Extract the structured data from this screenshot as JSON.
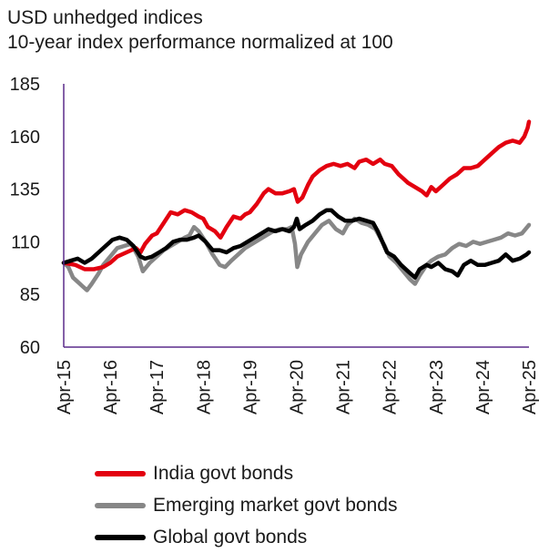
{
  "title": "USD unhedged indices",
  "subtitle": "10-year index performance normalized at 100",
  "chart_data": {
    "type": "line",
    "title": "USD unhedged indices",
    "subtitle": "10-year index performance normalized at 100",
    "ylim": [
      60,
      185
    ],
    "y_ticks": [
      60,
      85,
      110,
      135,
      160,
      185
    ],
    "x_range": [
      2015.25,
      2025.25
    ],
    "x_ticks": [
      {
        "label": "Apr-15",
        "t": 2015.25
      },
      {
        "label": "Apr-16",
        "t": 2016.25
      },
      {
        "label": "Apr-17",
        "t": 2017.25
      },
      {
        "label": "Apr-18",
        "t": 2018.25
      },
      {
        "label": "Apr-19",
        "t": 2019.25
      },
      {
        "label": "Apr-20",
        "t": 2020.25
      },
      {
        "label": "Apr-21",
        "t": 2021.25
      },
      {
        "label": "Apr-22",
        "t": 2022.25
      },
      {
        "label": "Apr-23",
        "t": 2023.25
      },
      {
        "label": "Apr-24",
        "t": 2024.25
      },
      {
        "label": "Apr-25",
        "t": 2025.25
      }
    ],
    "grid": false,
    "legend_position": "bottom",
    "series": [
      {
        "name": "India govt bonds",
        "color": "#e3000f",
        "points": [
          [
            2015.25,
            100
          ],
          [
            2015.5,
            99
          ],
          [
            2015.7,
            97
          ],
          [
            2015.9,
            97
          ],
          [
            2016.1,
            98
          ],
          [
            2016.25,
            100
          ],
          [
            2016.4,
            103
          ],
          [
            2016.6,
            105
          ],
          [
            2016.8,
            107
          ],
          [
            2016.9,
            105
          ],
          [
            2017.0,
            109
          ],
          [
            2017.15,
            113
          ],
          [
            2017.25,
            114
          ],
          [
            2017.4,
            119
          ],
          [
            2017.55,
            124
          ],
          [
            2017.7,
            123
          ],
          [
            2017.85,
            125
          ],
          [
            2018.0,
            124
          ],
          [
            2018.15,
            122
          ],
          [
            2018.25,
            121
          ],
          [
            2018.35,
            117
          ],
          [
            2018.5,
            115
          ],
          [
            2018.62,
            112
          ],
          [
            2018.75,
            117
          ],
          [
            2018.9,
            122
          ],
          [
            2019.05,
            121
          ],
          [
            2019.15,
            123
          ],
          [
            2019.25,
            124
          ],
          [
            2019.4,
            128
          ],
          [
            2019.55,
            133
          ],
          [
            2019.65,
            135
          ],
          [
            2019.8,
            133
          ],
          [
            2019.95,
            133
          ],
          [
            2020.1,
            134
          ],
          [
            2020.2,
            135
          ],
          [
            2020.28,
            129
          ],
          [
            2020.38,
            131
          ],
          [
            2020.5,
            137
          ],
          [
            2020.6,
            141
          ],
          [
            2020.75,
            144
          ],
          [
            2020.9,
            146
          ],
          [
            2021.05,
            147
          ],
          [
            2021.2,
            146
          ],
          [
            2021.35,
            147
          ],
          [
            2021.5,
            145
          ],
          [
            2021.6,
            148
          ],
          [
            2021.75,
            149
          ],
          [
            2021.9,
            147
          ],
          [
            2022.05,
            149
          ],
          [
            2022.15,
            147
          ],
          [
            2022.3,
            146
          ],
          [
            2022.45,
            142
          ],
          [
            2022.55,
            140
          ],
          [
            2022.65,
            138
          ],
          [
            2022.8,
            136
          ],
          [
            2022.95,
            134
          ],
          [
            2023.05,
            132
          ],
          [
            2023.15,
            136
          ],
          [
            2023.25,
            134
          ],
          [
            2023.4,
            137
          ],
          [
            2023.55,
            140
          ],
          [
            2023.7,
            142
          ],
          [
            2023.85,
            145
          ],
          [
            2024.0,
            145
          ],
          [
            2024.15,
            146
          ],
          [
            2024.3,
            149
          ],
          [
            2024.45,
            152
          ],
          [
            2024.6,
            155
          ],
          [
            2024.75,
            157
          ],
          [
            2024.9,
            158
          ],
          [
            2025.05,
            157
          ],
          [
            2025.15,
            160
          ],
          [
            2025.22,
            164
          ],
          [
            2025.25,
            167
          ]
        ]
      },
      {
        "name": "Emerging market govt bonds",
        "color": "#878787",
        "points": [
          [
            2015.25,
            100
          ],
          [
            2015.35,
            98
          ],
          [
            2015.45,
            93
          ],
          [
            2015.55,
            91
          ],
          [
            2015.65,
            89
          ],
          [
            2015.75,
            87
          ],
          [
            2015.85,
            90
          ],
          [
            2016.0,
            95
          ],
          [
            2016.1,
            99
          ],
          [
            2016.25,
            103
          ],
          [
            2016.4,
            107
          ],
          [
            2016.55,
            108
          ],
          [
            2016.7,
            109
          ],
          [
            2016.85,
            103
          ],
          [
            2016.95,
            96
          ],
          [
            2017.1,
            100
          ],
          [
            2017.25,
            103
          ],
          [
            2017.4,
            106
          ],
          [
            2017.55,
            108
          ],
          [
            2017.7,
            110
          ],
          [
            2017.85,
            112
          ],
          [
            2017.95,
            113
          ],
          [
            2018.05,
            117
          ],
          [
            2018.15,
            115
          ],
          [
            2018.3,
            110
          ],
          [
            2018.45,
            104
          ],
          [
            2018.6,
            99
          ],
          [
            2018.72,
            98
          ],
          [
            2018.85,
            101
          ],
          [
            2019.0,
            104
          ],
          [
            2019.15,
            107
          ],
          [
            2019.3,
            109
          ],
          [
            2019.45,
            111
          ],
          [
            2019.6,
            113
          ],
          [
            2019.75,
            115
          ],
          [
            2019.9,
            116
          ],
          [
            2020.05,
            116
          ],
          [
            2020.15,
            117
          ],
          [
            2020.22,
            109
          ],
          [
            2020.27,
            98
          ],
          [
            2020.35,
            104
          ],
          [
            2020.5,
            110
          ],
          [
            2020.65,
            114
          ],
          [
            2020.8,
            118
          ],
          [
            2020.95,
            120
          ],
          [
            2021.1,
            116
          ],
          [
            2021.25,
            114
          ],
          [
            2021.35,
            118
          ],
          [
            2021.5,
            121
          ],
          [
            2021.65,
            119
          ],
          [
            2021.8,
            118
          ],
          [
            2021.95,
            116
          ],
          [
            2022.05,
            112
          ],
          [
            2022.15,
            108
          ],
          [
            2022.25,
            103
          ],
          [
            2022.4,
            100
          ],
          [
            2022.55,
            96
          ],
          [
            2022.7,
            92
          ],
          [
            2022.8,
            90
          ],
          [
            2022.9,
            94
          ],
          [
            2023.05,
            99
          ],
          [
            2023.15,
            101
          ],
          [
            2023.3,
            103
          ],
          [
            2023.45,
            104
          ],
          [
            2023.6,
            107
          ],
          [
            2023.75,
            109
          ],
          [
            2023.9,
            108
          ],
          [
            2024.05,
            110
          ],
          [
            2024.2,
            109
          ],
          [
            2024.35,
            110
          ],
          [
            2024.5,
            111
          ],
          [
            2024.65,
            112
          ],
          [
            2024.8,
            114
          ],
          [
            2024.95,
            113
          ],
          [
            2025.1,
            114
          ],
          [
            2025.25,
            118
          ]
        ]
      },
      {
        "name": "Global govt bonds",
        "color": "#000000",
        "points": [
          [
            2015.25,
            100
          ],
          [
            2015.4,
            101
          ],
          [
            2015.55,
            102
          ],
          [
            2015.7,
            100
          ],
          [
            2015.85,
            102
          ],
          [
            2016.0,
            105
          ],
          [
            2016.15,
            108
          ],
          [
            2016.3,
            111
          ],
          [
            2016.45,
            112
          ],
          [
            2016.6,
            111
          ],
          [
            2016.75,
            108
          ],
          [
            2016.9,
            103
          ],
          [
            2017.0,
            102
          ],
          [
            2017.15,
            103
          ],
          [
            2017.3,
            105
          ],
          [
            2017.45,
            107
          ],
          [
            2017.6,
            110
          ],
          [
            2017.75,
            111
          ],
          [
            2017.9,
            111
          ],
          [
            2018.05,
            112
          ],
          [
            2018.15,
            113
          ],
          [
            2018.3,
            110
          ],
          [
            2018.45,
            106
          ],
          [
            2018.6,
            106
          ],
          [
            2018.75,
            105
          ],
          [
            2018.9,
            107
          ],
          [
            2019.05,
            108
          ],
          [
            2019.2,
            110
          ],
          [
            2019.35,
            112
          ],
          [
            2019.5,
            114
          ],
          [
            2019.65,
            116
          ],
          [
            2019.8,
            115
          ],
          [
            2019.95,
            116
          ],
          [
            2020.1,
            115
          ],
          [
            2020.2,
            117
          ],
          [
            2020.26,
            121
          ],
          [
            2020.32,
            116
          ],
          [
            2020.45,
            118
          ],
          [
            2020.6,
            120
          ],
          [
            2020.75,
            123
          ],
          [
            2020.9,
            125
          ],
          [
            2021.0,
            125
          ],
          [
            2021.15,
            122
          ],
          [
            2021.3,
            120
          ],
          [
            2021.45,
            120
          ],
          [
            2021.6,
            121
          ],
          [
            2021.75,
            120
          ],
          [
            2021.9,
            119
          ],
          [
            2022.0,
            115
          ],
          [
            2022.1,
            110
          ],
          [
            2022.2,
            105
          ],
          [
            2022.35,
            103
          ],
          [
            2022.5,
            99
          ],
          [
            2022.65,
            96
          ],
          [
            2022.8,
            93
          ],
          [
            2022.9,
            97
          ],
          [
            2023.05,
            99
          ],
          [
            2023.15,
            98
          ],
          [
            2023.3,
            100
          ],
          [
            2023.45,
            97
          ],
          [
            2023.6,
            96
          ],
          [
            2023.72,
            94
          ],
          [
            2023.85,
            99
          ],
          [
            2024.0,
            101
          ],
          [
            2024.15,
            99
          ],
          [
            2024.3,
            99
          ],
          [
            2024.45,
            100
          ],
          [
            2024.6,
            101
          ],
          [
            2024.75,
            104
          ],
          [
            2024.9,
            101
          ],
          [
            2025.05,
            102
          ],
          [
            2025.2,
            104
          ],
          [
            2025.25,
            105
          ]
        ]
      }
    ]
  }
}
